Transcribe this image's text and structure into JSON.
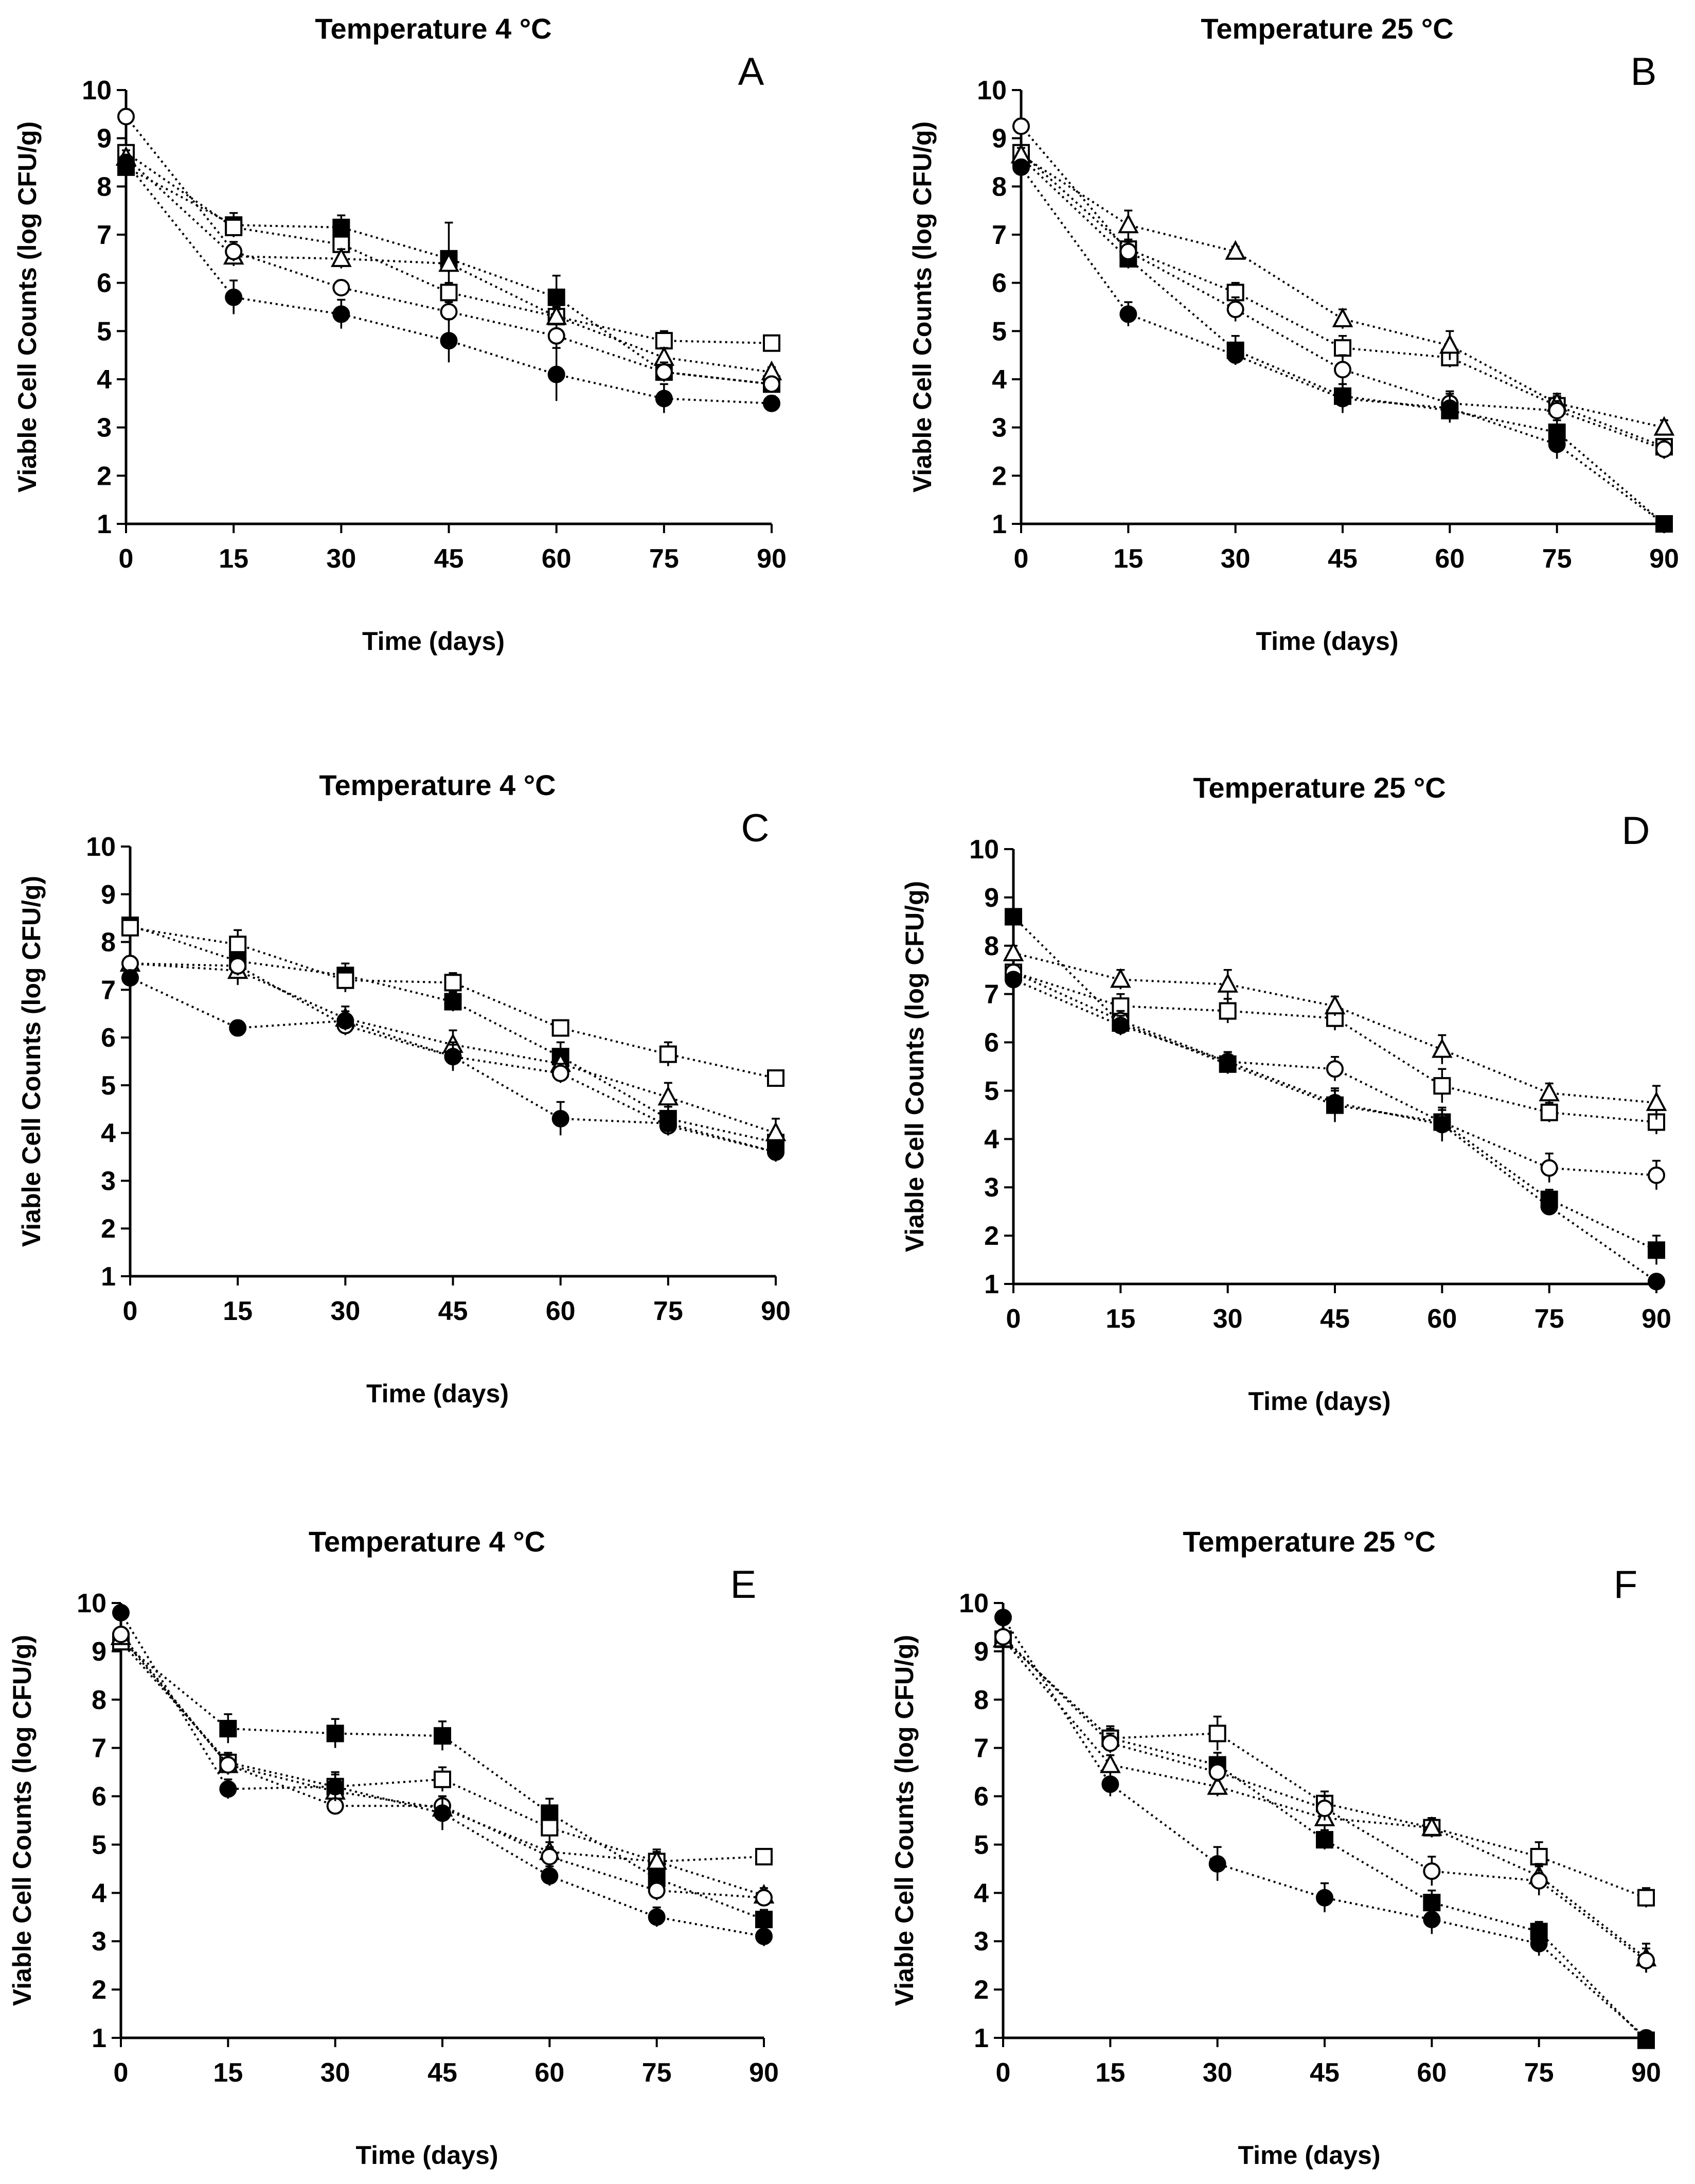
{
  "figure": {
    "legend": "none shown",
    "marker_styles": {
      "filled-square": {
        "shape": "square",
        "fill": "#000000"
      },
      "open-square": {
        "shape": "square",
        "fill": "#ffffff"
      },
      "open-triangle": {
        "shape": "triangle",
        "fill": "#ffffff"
      },
      "open-circle": {
        "shape": "circle",
        "fill": "#ffffff"
      },
      "filled-circle": {
        "shape": "circle",
        "fill": "#000000"
      }
    },
    "line_color": "#000000"
  },
  "chart_data": [
    {
      "panel": "A",
      "type": "line",
      "title": "Temperature 4 °C",
      "xlabel": "Time (days)",
      "ylabel": "Viable Cell Counts (log CFU/g)",
      "x": [
        0,
        15,
        30,
        45,
        60,
        75,
        90
      ],
      "xticks": [
        "0",
        "15",
        "30",
        "45",
        "60",
        "75",
        "90"
      ],
      "ylim": [
        1,
        10
      ],
      "yticks": [
        "1",
        "2",
        "3",
        "4",
        "5",
        "6",
        "7",
        "8",
        "9",
        "10"
      ],
      "grid": false,
      "series": [
        {
          "marker": "filled-square",
          "values": [
            8.4,
            7.2,
            7.15,
            6.5,
            5.7,
            4.15,
            3.9
          ],
          "err": [
            0.1,
            0.25,
            0.25,
            0.75,
            0.45,
            0.2,
            0.15
          ]
        },
        {
          "marker": "open-square",
          "values": [
            8.7,
            7.15,
            6.8,
            5.8,
            5.3,
            4.8,
            4.75
          ],
          "err": [
            0.15,
            0.2,
            0.2,
            0.2,
            0.2,
            0.2,
            0.1
          ]
        },
        {
          "marker": "open-triangle",
          "values": [
            8.6,
            6.55,
            6.5,
            6.4,
            5.3,
            4.45,
            4.15
          ],
          "err": [
            0.15,
            0.2,
            0.2,
            0.2,
            0.15,
            0.2,
            0.1
          ]
        },
        {
          "marker": "open-circle",
          "values": [
            9.45,
            6.65,
            5.9,
            5.4,
            4.9,
            4.15,
            3.9
          ],
          "err": [
            0.15,
            0.2,
            0.15,
            0.2,
            0.25,
            0.2,
            0.1
          ]
        },
        {
          "marker": "filled-circle",
          "values": [
            8.5,
            5.7,
            5.35,
            4.8,
            4.1,
            3.6,
            3.5
          ],
          "err": [
            0.1,
            0.35,
            0.3,
            0.45,
            0.55,
            0.3,
            0.15
          ]
        }
      ]
    },
    {
      "panel": "B",
      "type": "line",
      "title": "Temperature 25 °C",
      "xlabel": "Time (days)",
      "ylabel": "Viable Cell Counts (log CFU/g)",
      "x": [
        0,
        15,
        30,
        45,
        60,
        75,
        90
      ],
      "xticks": [
        "0",
        "15",
        "30",
        "45",
        "60",
        "75",
        "90"
      ],
      "ylim": [
        1,
        10
      ],
      "yticks": [
        "1",
        "2",
        "3",
        "4",
        "5",
        "6",
        "7",
        "8",
        "9",
        "10"
      ],
      "grid": false,
      "series": [
        {
          "marker": "filled-square",
          "values": [
            8.6,
            6.5,
            4.6,
            3.65,
            3.35,
            2.9,
            1.0
          ],
          "err": [
            0.1,
            0.2,
            0.3,
            0.25,
            0.2,
            0.25,
            0.05
          ]
        },
        {
          "marker": "open-square",
          "values": [
            8.7,
            6.7,
            5.8,
            4.65,
            4.45,
            3.45,
            2.6
          ],
          "err": [
            0.15,
            0.2,
            0.2,
            0.25,
            0.2,
            0.2,
            0.15
          ]
        },
        {
          "marker": "open-triangle",
          "values": [
            8.65,
            7.2,
            6.65,
            5.25,
            4.7,
            3.5,
            3.0
          ],
          "err": [
            0.15,
            0.3,
            0.1,
            0.2,
            0.3,
            0.2,
            0.15
          ]
        },
        {
          "marker": "open-circle",
          "values": [
            9.25,
            6.65,
            5.45,
            4.2,
            3.5,
            3.35,
            2.55
          ],
          "err": [
            0.15,
            0.2,
            0.25,
            0.3,
            0.25,
            0.2,
            0.2
          ]
        },
        {
          "marker": "filled-circle",
          "values": [
            8.4,
            5.35,
            4.5,
            3.6,
            3.4,
            2.65,
            1.0
          ],
          "err": [
            0.1,
            0.25,
            0.2,
            0.3,
            0.3,
            0.3,
            0.05
          ]
        }
      ]
    },
    {
      "panel": "C",
      "type": "line",
      "title": "Temperature 4 °C",
      "xlabel": "Time (days)",
      "ylabel": "Viable Cell Counts (log CFU/g)",
      "x": [
        0,
        15,
        30,
        45,
        60,
        75,
        90
      ],
      "xticks": [
        "0",
        "15",
        "30",
        "45",
        "60",
        "75",
        "90"
      ],
      "ylim": [
        1,
        10
      ],
      "yticks": [
        "1",
        "2",
        "3",
        "4",
        "5",
        "6",
        "7",
        "8",
        "9",
        "10"
      ],
      "grid": false,
      "series": [
        {
          "marker": "filled-square",
          "values": [
            8.35,
            7.6,
            7.3,
            6.75,
            5.6,
            4.3,
            3.8
          ],
          "err": [
            0.1,
            0.2,
            0.25,
            0.2,
            0.3,
            0.25,
            0.2
          ]
        },
        {
          "marker": "open-square",
          "values": [
            8.3,
            7.95,
            7.2,
            7.15,
            6.2,
            5.65,
            5.15
          ],
          "err": [
            0.1,
            0.3,
            0.25,
            0.2,
            0.15,
            0.25,
            0.15
          ]
        },
        {
          "marker": "open-triangle",
          "values": [
            7.55,
            7.4,
            6.4,
            5.85,
            5.45,
            4.75,
            4.0
          ],
          "err": [
            0.15,
            0.3,
            0.25,
            0.3,
            0.25,
            0.3,
            0.3
          ]
        },
        {
          "marker": "open-circle",
          "values": [
            7.55,
            7.5,
            6.25,
            5.6,
            5.25,
            4.15,
            3.6
          ],
          "err": [
            0.15,
            0.2,
            0.2,
            0.25,
            0.2,
            0.2,
            0.15
          ]
        },
        {
          "marker": "filled-circle",
          "values": [
            7.25,
            6.2,
            6.35,
            5.6,
            4.3,
            4.2,
            3.6
          ],
          "err": [
            0.1,
            0.15,
            0.2,
            0.3,
            0.35,
            0.25,
            0.2
          ]
        }
      ]
    },
    {
      "panel": "D",
      "type": "line",
      "title": "Temperature 25 °C",
      "xlabel": "Time (days)",
      "ylabel": "Viable Cell Counts (log CFU/g)",
      "x": [
        0,
        15,
        30,
        45,
        60,
        75,
        90
      ],
      "xticks": [
        "0",
        "15",
        "30",
        "45",
        "60",
        "75",
        "90"
      ],
      "ylim": [
        1,
        10
      ],
      "yticks": [
        "1",
        "2",
        "3",
        "4",
        "5",
        "6",
        "7",
        "8",
        "9",
        "10"
      ],
      "grid": false,
      "series": [
        {
          "marker": "filled-square",
          "values": [
            8.6,
            6.4,
            5.55,
            4.7,
            4.35,
            2.75,
            1.7
          ],
          "err": [
            0.1,
            0.2,
            0.2,
            0.35,
            0.25,
            0.2,
            0.3
          ]
        },
        {
          "marker": "open-square",
          "values": [
            7.45,
            6.75,
            6.65,
            6.5,
            5.1,
            4.55,
            4.35
          ],
          "err": [
            0.15,
            0.25,
            0.25,
            0.25,
            0.35,
            0.2,
            0.25
          ]
        },
        {
          "marker": "open-triangle",
          "values": [
            7.85,
            7.3,
            7.2,
            6.75,
            5.85,
            4.95,
            4.75
          ],
          "err": [
            0.15,
            0.2,
            0.3,
            0.2,
            0.3,
            0.2,
            0.35
          ]
        },
        {
          "marker": "open-circle",
          "values": [
            7.45,
            6.45,
            5.6,
            5.45,
            4.35,
            3.4,
            3.25
          ],
          "err": [
            0.15,
            0.2,
            0.2,
            0.25,
            0.3,
            0.3,
            0.3
          ]
        },
        {
          "marker": "filled-circle",
          "values": [
            7.3,
            6.35,
            5.6,
            4.75,
            4.3,
            2.6,
            1.05
          ],
          "err": [
            0.1,
            0.2,
            0.2,
            0.25,
            0.35,
            0.15,
            0.1
          ]
        }
      ]
    },
    {
      "panel": "E",
      "type": "line",
      "title": "Temperature 4 °C",
      "xlabel": "Time (days)",
      "ylabel": "Viable Cell Counts (log CFU/g)",
      "x": [
        0,
        15,
        30,
        45,
        60,
        75,
        90
      ],
      "xticks": [
        "0",
        "15",
        "30",
        "45",
        "60",
        "75",
        "90"
      ],
      "ylim": [
        1,
        10
      ],
      "yticks": [
        "1",
        "2",
        "3",
        "4",
        "5",
        "6",
        "7",
        "8",
        "9",
        "10"
      ],
      "grid": false,
      "series": [
        {
          "marker": "filled-square",
          "values": [
            9.2,
            7.4,
            7.3,
            7.25,
            5.65,
            4.3,
            3.45
          ],
          "err": [
            0.1,
            0.3,
            0.3,
            0.3,
            0.3,
            0.3,
            0.2
          ]
        },
        {
          "marker": "open-square",
          "values": [
            9.2,
            6.7,
            6.2,
            6.35,
            5.35,
            4.65,
            4.75
          ],
          "err": [
            0.1,
            0.2,
            0.25,
            0.25,
            0.3,
            0.2,
            0.15
          ]
        },
        {
          "marker": "open-triangle",
          "values": [
            9.3,
            6.65,
            6.1,
            5.75,
            4.85,
            4.65,
            3.95
          ],
          "err": [
            0.1,
            0.2,
            0.2,
            0.25,
            0.2,
            0.25,
            0.15
          ]
        },
        {
          "marker": "open-circle",
          "values": [
            9.35,
            6.65,
            5.8,
            5.8,
            4.75,
            4.05,
            3.9
          ],
          "err": [
            0.1,
            0.2,
            0.15,
            0.2,
            0.2,
            0.2,
            0.15
          ]
        },
        {
          "marker": "filled-circle",
          "values": [
            9.8,
            6.15,
            6.2,
            5.65,
            4.35,
            3.5,
            3.1
          ],
          "err": [
            0.1,
            0.2,
            0.3,
            0.35,
            0.2,
            0.2,
            0.2
          ]
        }
      ]
    },
    {
      "panel": "F",
      "type": "line",
      "title": "Temperature 25 °C",
      "xlabel": "Time (days)",
      "ylabel": "Viable Cell Counts (log CFU/g)",
      "x": [
        0,
        15,
        30,
        45,
        60,
        75,
        90
      ],
      "xticks": [
        "0",
        "15",
        "30",
        "45",
        "60",
        "75",
        "90"
      ],
      "ylim": [
        1,
        10
      ],
      "yticks": [
        "1",
        "2",
        "3",
        "4",
        "5",
        "6",
        "7",
        "8",
        "9",
        "10"
      ],
      "grid": false,
      "series": [
        {
          "marker": "filled-square",
          "values": [
            9.25,
            7.2,
            6.65,
            5.1,
            3.8,
            3.2,
            0.95
          ],
          "err": [
            0.1,
            0.25,
            0.25,
            0.2,
            0.25,
            0.2,
            0.1
          ]
        },
        {
          "marker": "open-square",
          "values": [
            9.25,
            7.2,
            7.3,
            5.85,
            5.35,
            4.75,
            3.9
          ],
          "err": [
            0.1,
            0.2,
            0.35,
            0.25,
            0.2,
            0.3,
            0.2
          ]
        },
        {
          "marker": "open-triangle",
          "values": [
            9.25,
            6.65,
            6.2,
            5.55,
            5.35,
            4.35,
            2.65
          ],
          "err": [
            0.1,
            0.2,
            0.2,
            0.25,
            0.2,
            0.25,
            0.3
          ]
        },
        {
          "marker": "open-circle",
          "values": [
            9.3,
            7.1,
            6.5,
            5.75,
            4.45,
            4.25,
            2.6
          ],
          "err": [
            0.1,
            0.2,
            0.2,
            0.25,
            0.3,
            0.3,
            0.25
          ]
        },
        {
          "marker": "filled-circle",
          "values": [
            9.7,
            6.25,
            4.6,
            3.9,
            3.45,
            2.95,
            1.0
          ],
          "err": [
            0.1,
            0.25,
            0.35,
            0.3,
            0.3,
            0.25,
            0.1
          ]
        }
      ]
    }
  ]
}
